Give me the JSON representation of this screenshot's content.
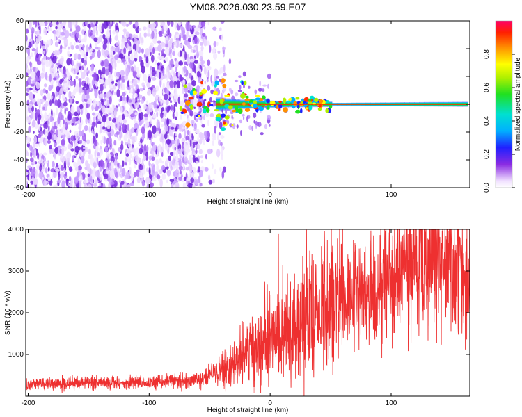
{
  "title": "YM08.2026.030.23.59.E07",
  "chart_data": [
    {
      "type": "heatmap",
      "xlabel": "Height of straight line (km)",
      "ylabel": "Frequency (Hz)",
      "xlim": [
        -202,
        165
      ],
      "ylim": [
        -60,
        60
      ],
      "xticks": [
        -200,
        -100,
        0,
        100
      ],
      "yticks": [
        -60,
        -40,
        -20,
        0,
        20,
        40,
        60
      ],
      "colorbar": {
        "label": "Normalized spectral amplitude",
        "range": [
          0,
          1
        ],
        "ticks": [
          "0.0",
          "0.2",
          "0.4",
          "0.6",
          "0.8"
        ]
      },
      "description_series": [
        {
          "name": "noise_region_x",
          "values": [
            -202,
            -55
          ]
        },
        {
          "name": "signal_band_center_hz",
          "values": [
            0
          ]
        }
      ]
    },
    {
      "type": "line",
      "xlabel": "Height of straight line (km)",
      "ylabel": "SNR (10 * v/v)",
      "xlim": [
        -202,
        165
      ],
      "ylim": [
        0,
        4000
      ],
      "xticks": [
        -200,
        -100,
        0,
        100
      ],
      "yticks": [
        1000,
        2000,
        3000,
        4000
      ],
      "series": [
        {
          "name": "SNR",
          "x": [
            -200,
            -150,
            -100,
            -60,
            -40,
            -25,
            -10,
            0,
            10,
            25,
            40,
            55,
            70,
            85,
            95,
            105,
            115,
            130,
            150,
            165
          ],
          "values": [
            300,
            320,
            330,
            380,
            600,
            900,
            1200,
            1300,
            1500,
            1750,
            2000,
            2150,
            2300,
            2500,
            2800,
            3100,
            3300,
            3350,
            3150,
            3050
          ]
        }
      ]
    }
  ]
}
